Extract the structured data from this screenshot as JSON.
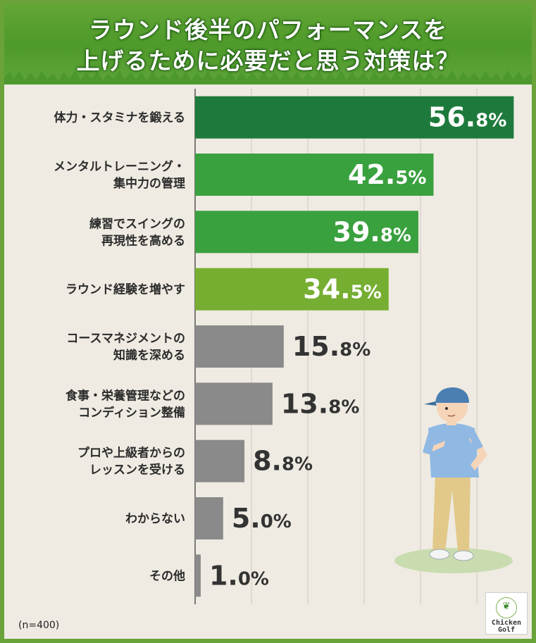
{
  "title": {
    "line1": "ラウンド後半のパフォーマンスを",
    "line2": "上げるために必要だと思う対策は？"
  },
  "sample_note": "(n=400)",
  "logo": {
    "line1": "Chicken",
    "line2": "Golf"
  },
  "colors": {
    "frame": "#6aa33a",
    "background": "#efebe2",
    "bar_dark_green": "#1e7a3c",
    "bar_green": "#3aa13f",
    "bar_light_green": "#76ae32",
    "bar_gray": "#8a8a8a"
  },
  "chart_data": {
    "type": "bar",
    "orientation": "horizontal",
    "title": "ラウンド後半のパフォーマンスを上げるために必要だと思う対策は？",
    "unit": "%",
    "xlim": [
      0,
      57
    ],
    "grid": true,
    "categories": [
      [
        "体力・スタミナを鍛える"
      ],
      [
        "メンタルトレーニング・",
        "集中力の管理"
      ],
      [
        "練習でスイングの",
        "再現性を高める"
      ],
      [
        "ラウンド経験を増やす"
      ],
      [
        "コースマネジメントの",
        "知識を深める"
      ],
      [
        "食事・栄養管理などの",
        "コンディション整備"
      ],
      [
        "プロや上級者からの",
        "レッスンを受ける"
      ],
      [
        "わからない"
      ],
      [
        "その他"
      ]
    ],
    "values": [
      56.8,
      42.5,
      39.8,
      34.5,
      15.8,
      13.8,
      8.8,
      5.0,
      1.0
    ],
    "value_labels": [
      {
        "int": "56.",
        "dec": "8%"
      },
      {
        "int": "42.",
        "dec": "5%"
      },
      {
        "int": "39.",
        "dec": "8%"
      },
      {
        "int": "34.",
        "dec": "5%"
      },
      {
        "int": "15.",
        "dec": "8%"
      },
      {
        "int": "13.",
        "dec": "8%"
      },
      {
        "int": "8.",
        "dec": "8%"
      },
      {
        "int": "5.",
        "dec": "0%"
      },
      {
        "int": "1.",
        "dec": "0%"
      }
    ],
    "bar_colors": [
      "#1e7a3c",
      "#3aa13f",
      "#3aa13f",
      "#76ae32",
      "#8a8a8a",
      "#8a8a8a",
      "#8a8a8a",
      "#8a8a8a",
      "#8a8a8a"
    ],
    "label_inside": [
      true,
      true,
      true,
      true,
      false,
      false,
      false,
      false,
      false
    ]
  }
}
